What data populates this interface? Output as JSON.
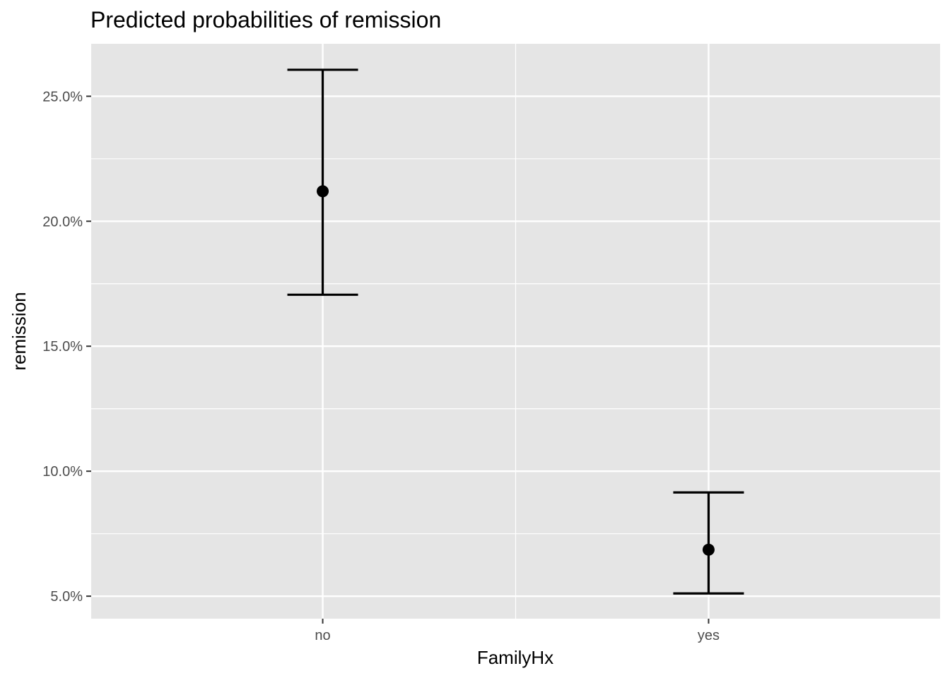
{
  "chart_data": {
    "type": "errorbar",
    "title": "Predicted probabilities of remission",
    "xlabel": "FamilyHx",
    "ylabel": "remission",
    "categories": [
      "no",
      "yes"
    ],
    "series": [
      {
        "estimate": [
          0.212,
          0.0686
        ],
        "lower": [
          0.1706,
          0.0511
        ],
        "upper": [
          0.2606,
          0.0915
        ]
      }
    ],
    "ylim": [
      0.041,
      0.271
    ],
    "y_ticks": [
      0.05,
      0.1,
      0.15,
      0.2,
      0.25
    ],
    "y_tick_labels": [
      "5.0%",
      "10.0%",
      "15.0%",
      "20.0%",
      "25.0%"
    ],
    "grid": true,
    "legend": "none",
    "colors": {
      "panel_background": "#e5e5e5",
      "grid_line": "#ffffff",
      "marks": "#000000",
      "tick_text": "#4d4d4d",
      "tick_mark": "#333333"
    }
  }
}
